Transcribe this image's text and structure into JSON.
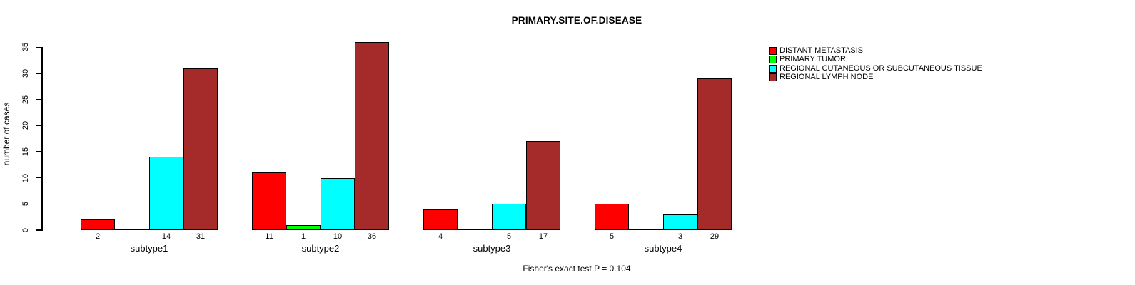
{
  "figure": {
    "title": "PRIMARY.SITE.OF.DISEASE",
    "footer": "Fisher's exact test P = 0.104"
  },
  "chart_data": {
    "type": "bar",
    "title": "PRIMARY.SITE.OF.DISEASE",
    "xlabel": "",
    "ylabel": "number of cases",
    "ylim": [
      0,
      35
    ],
    "yticks": [
      0,
      5,
      10,
      15,
      20,
      25,
      30,
      35
    ],
    "grid": false,
    "legend_position": "top-right",
    "annotation": "Fisher's exact test P = 0.104",
    "categories": [
      "subtype1",
      "subtype2",
      "subtype3",
      "subtype4"
    ],
    "series": [
      {
        "name": "DISTANT METASTASIS",
        "color": "#FF0000",
        "values": [
          2,
          11,
          4,
          5
        ]
      },
      {
        "name": "PRIMARY TUMOR",
        "color": "#00FF00",
        "values": [
          0,
          1,
          0,
          0
        ]
      },
      {
        "name": "REGIONAL CUTANEOUS OR SUBCUTANEOUS TISSUE",
        "color": "#00FFFF",
        "values": [
          14,
          10,
          5,
          3
        ]
      },
      {
        "name": "REGIONAL LYMPH NODE",
        "color": "#A52A2A",
        "values": [
          31,
          36,
          17,
          29
        ]
      }
    ],
    "bar_value_labels_shown_for_zero": false
  },
  "colors": {
    "background": "#FFFFFF",
    "axis": "#000000",
    "text": "#000000"
  }
}
